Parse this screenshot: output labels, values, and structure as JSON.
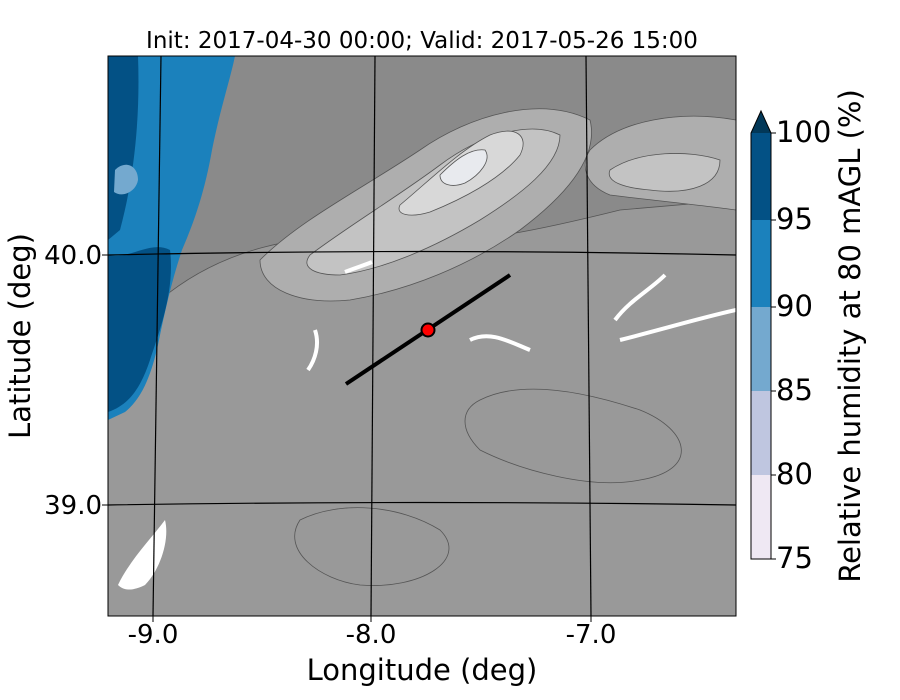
{
  "figure": {
    "title": "Init: 2017-04-30 00:00; Valid: 2017-05-26 15:00",
    "xlabel": "Longitude (deg)",
    "ylabel": "Latitude (deg)"
  },
  "axes": {
    "x_ticks": [
      "-9.0",
      "-8.0",
      "-7.0"
    ],
    "y_ticks": [
      "40.0",
      "39.0"
    ]
  },
  "colorbar": {
    "label": "Relative humidity at 80 mAGL (%)",
    "ticks": [
      "75",
      "80",
      "85",
      "90",
      "95",
      "100"
    ],
    "colors": [
      "#efe8f3",
      "#bfc6e0",
      "#74a9cf",
      "#1b81bc",
      "#035185",
      "#023858"
    ],
    "extend": "max"
  },
  "map": {
    "land_colors": [
      "#8a8a8a",
      "#999999",
      "#aeaeae",
      "#c3c3c3",
      "#d8d8d8",
      "#e8eaee"
    ],
    "ocean_colors": [
      "#1b81bc",
      "#035185"
    ],
    "transect_color": "#000000",
    "marker_color": "#ff0000"
  }
}
